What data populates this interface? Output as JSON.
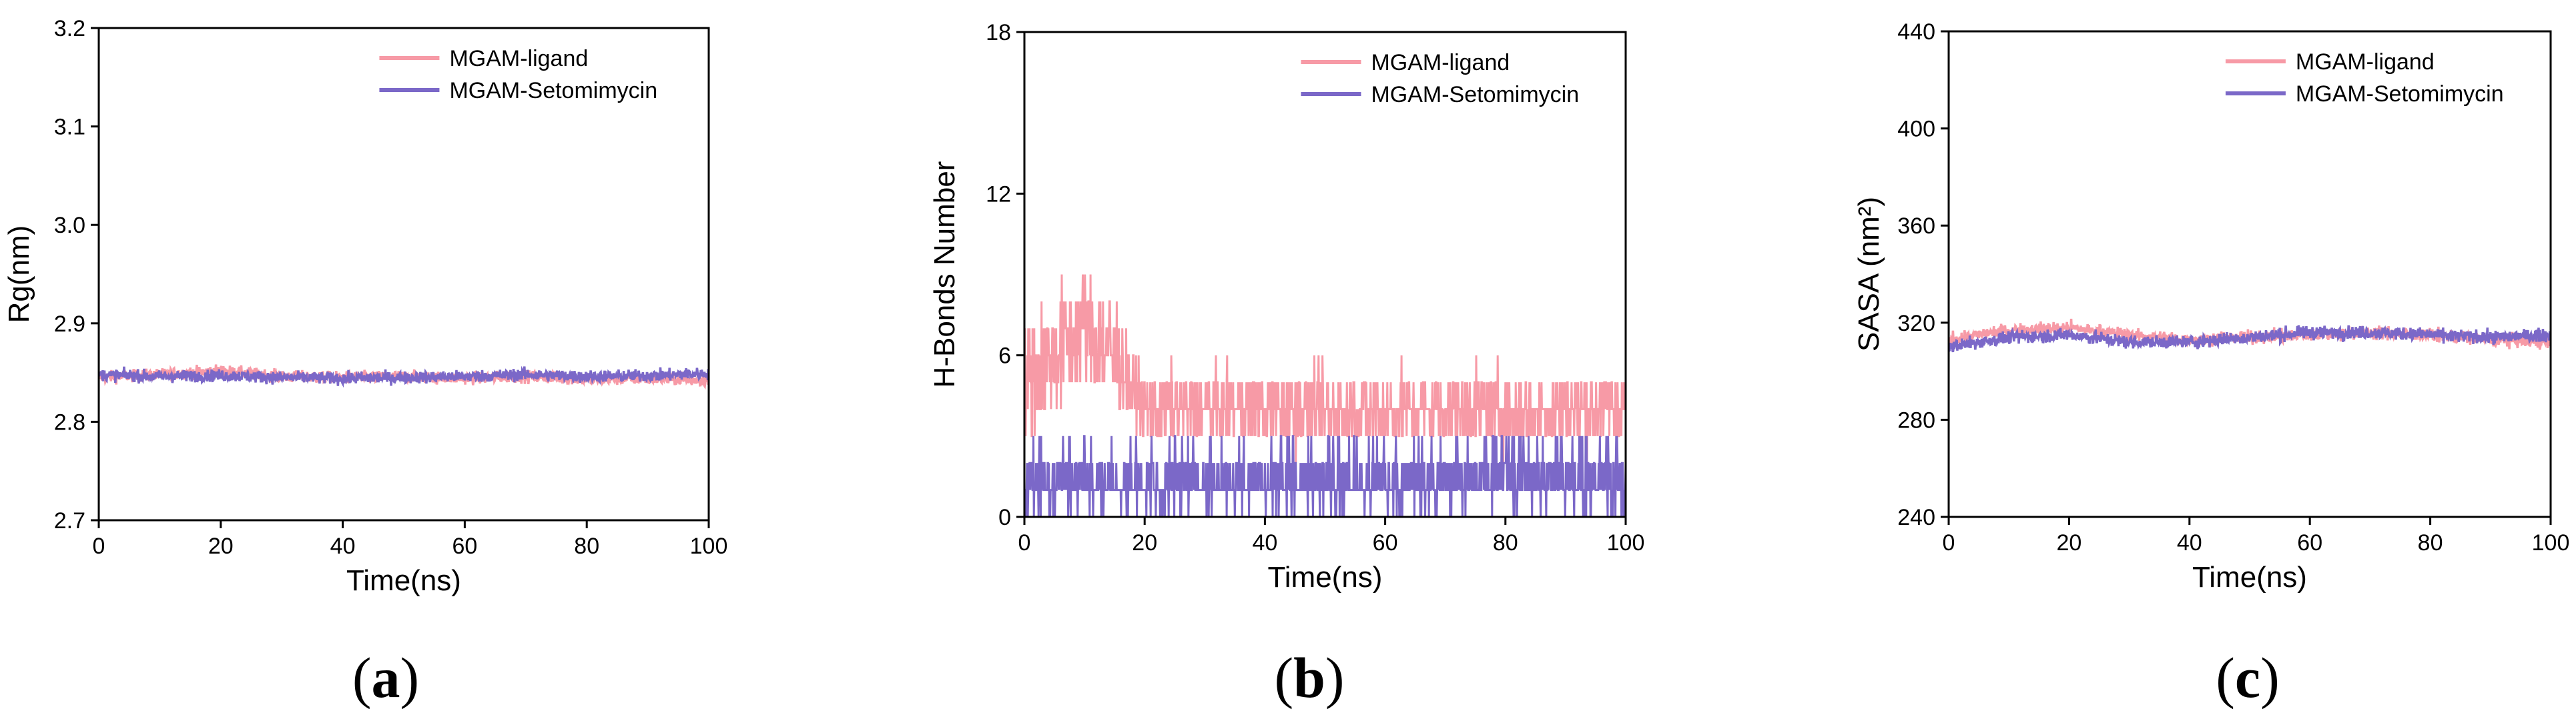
{
  "colors": {
    "ligand": "#f79aa6",
    "setomimycin": "#7b68c8"
  },
  "chart_data": [
    {
      "type": "line",
      "panel_label": "a",
      "title": "",
      "xlabel": "Time(ns)",
      "ylabel": "Rg(nm)",
      "xlim": [
        0,
        100
      ],
      "ylim": [
        2.7,
        3.2
      ],
      "xticks": [
        "0",
        "20",
        "40",
        "60",
        "80",
        "100"
      ],
      "yticks": [
        "2.7",
        "2.8",
        "2.9",
        "3.0",
        "3.1",
        "3.2"
      ],
      "legend_position": "top-right",
      "grid": false,
      "series": [
        {
          "name": "MGAM-ligand",
          "color_key": "ligand",
          "x": [
            0,
            10,
            20,
            30,
            40,
            50,
            60,
            70,
            80,
            90,
            100
          ],
          "y": [
            2.845,
            2.848,
            2.852,
            2.846,
            2.845,
            2.846,
            2.844,
            2.846,
            2.843,
            2.844,
            2.842
          ]
        },
        {
          "name": "MGAM-Setomimycin",
          "color_key": "setomimycin",
          "x": [
            0,
            10,
            20,
            30,
            40,
            50,
            60,
            70,
            80,
            90,
            100
          ],
          "y": [
            2.848,
            2.846,
            2.847,
            2.845,
            2.844,
            2.845,
            2.846,
            2.848,
            2.846,
            2.847,
            2.849
          ]
        }
      ]
    },
    {
      "type": "line",
      "panel_label": "b",
      "title": "",
      "xlabel": "Time(ns)",
      "ylabel": "H-Bonds Number",
      "xlim": [
        0,
        100
      ],
      "ylim": [
        0,
        18
      ],
      "xticks": [
        "0",
        "20",
        "40",
        "60",
        "80",
        "100"
      ],
      "yticks": [
        "0",
        "6",
        "12",
        "18"
      ],
      "legend_position": "top-right",
      "grid": false,
      "series": [
        {
          "name": "MGAM-ligand",
          "color_key": "ligand",
          "x": [
            0,
            5,
            10,
            15,
            20,
            30,
            40,
            50,
            60,
            70,
            80,
            90,
            100
          ],
          "y": [
            5,
            6,
            7,
            6,
            4,
            4,
            4,
            4,
            4,
            4,
            4,
            4,
            4
          ]
        },
        {
          "name": "MGAM-Setomimycin",
          "color_key": "setomimycin",
          "x": [
            0,
            10,
            20,
            30,
            40,
            50,
            60,
            70,
            80,
            90,
            100
          ],
          "y": [
            1,
            1,
            1,
            1,
            1,
            1,
            1,
            1,
            1,
            1,
            1
          ]
        }
      ]
    },
    {
      "type": "line",
      "panel_label": "c",
      "title": "",
      "xlabel": "Time(ns)",
      "ylabel": "SASA (nm²)",
      "xlim": [
        0,
        100
      ],
      "ylim": [
        240,
        440
      ],
      "xticks": [
        "0",
        "20",
        "40",
        "60",
        "80",
        "100"
      ],
      "yticks": [
        "240",
        "280",
        "320",
        "360",
        "400",
        "440"
      ],
      "legend_position": "top-right",
      "grid": false,
      "series": [
        {
          "name": "MGAM-ligand",
          "color_key": "ligand",
          "x": [
            0,
            10,
            20,
            30,
            40,
            50,
            60,
            70,
            80,
            90,
            100
          ],
          "y": [
            313,
            317,
            318,
            315,
            313,
            314,
            315,
            316,
            315,
            313,
            312
          ]
        },
        {
          "name": "MGAM-Setomimycin",
          "color_key": "setomimycin",
          "x": [
            0,
            10,
            20,
            30,
            40,
            50,
            60,
            70,
            80,
            90,
            100
          ],
          "y": [
            310,
            314,
            315,
            312,
            312,
            314,
            316,
            316,
            315,
            314,
            315
          ]
        }
      ]
    }
  ]
}
